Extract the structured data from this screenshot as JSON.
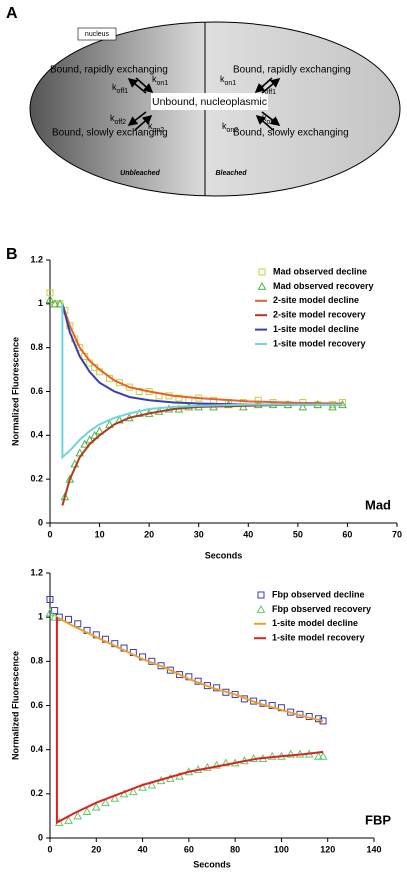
{
  "panel_a": {
    "label": "A",
    "compartment": "nucleus",
    "center": "Unbound, nucleoplasmic",
    "left_top": "Bound, rapidly exchanging",
    "right_top": "Bound, rapidly exchanging",
    "left_bottom": "Bound, slowly exchanging",
    "right_bottom": "Bound, slowly exchanging",
    "left_region": "Unbleached",
    "right_region": "Bleached",
    "rates": [
      {
        "symbol": "k",
        "subscript": "off1"
      },
      {
        "symbol": "k",
        "subscript": "on1"
      },
      {
        "symbol": "k",
        "subscript": "off2"
      },
      {
        "symbol": "k",
        "subscript": "on2"
      },
      {
        "symbol": "k",
        "subscript": "on1"
      },
      {
        "symbol": "k",
        "subscript": "off1"
      },
      {
        "symbol": "k",
        "subscript": "on2"
      },
      {
        "symbol": "k",
        "subscript": "off2"
      }
    ]
  },
  "panel_b_label": "B",
  "chart_data": [
    {
      "type": "line",
      "xlabel": "Seconds",
      "ylabel": "Normalized Fluorescence",
      "annotation": "Mad",
      "legend": "upper right",
      "xlim": [
        0,
        70
      ],
      "xticks": [
        0,
        10,
        20,
        30,
        40,
        50,
        60,
        70
      ],
      "ylim": [
        0,
        1.2
      ],
      "yticks": [
        0,
        0.2,
        0.4,
        0.6,
        0.8,
        1,
        1.2
      ],
      "series": [
        {
          "name": "Mad observed decline",
          "mode": "markers",
          "marker": "square",
          "color": "#c6d33a",
          "x": [
            0,
            1,
            2,
            3,
            4,
            5,
            6,
            7,
            8,
            9,
            10,
            12,
            14,
            16,
            18,
            20,
            22,
            24,
            26,
            28,
            30,
            33,
            36,
            39,
            42,
            45,
            48,
            51,
            54,
            57,
            59
          ],
          "values": [
            1.05,
            1,
            1,
            0.97,
            0.9,
            0.84,
            0.8,
            0.76,
            0.73,
            0.71,
            0.69,
            0.66,
            0.64,
            0.62,
            0.6,
            0.6,
            0.58,
            0.58,
            0.57,
            0.56,
            0.57,
            0.56,
            0.55,
            0.55,
            0.56,
            0.55,
            0.54,
            0.55,
            0.54,
            0.54,
            0.55
          ]
        },
        {
          "name": "Mad observed recovery",
          "mode": "markers",
          "marker": "triangle",
          "color": "#4cb648",
          "x": [
            0,
            1,
            2,
            3,
            4,
            5,
            6,
            7,
            8,
            9,
            10,
            12,
            14,
            16,
            18,
            20,
            22,
            24,
            26,
            28,
            30,
            33,
            36,
            39,
            42,
            45,
            48,
            51,
            54,
            57,
            59
          ],
          "values": [
            1.02,
            1,
            1,
            0.12,
            0.2,
            0.27,
            0.32,
            0.36,
            0.38,
            0.4,
            0.42,
            0.45,
            0.47,
            0.48,
            0.5,
            0.5,
            0.51,
            0.52,
            0.52,
            0.53,
            0.53,
            0.53,
            0.54,
            0.53,
            0.54,
            0.54,
            0.54,
            0.53,
            0.54,
            0.53,
            0.54
          ]
        },
        {
          "name": "2-site model decline",
          "mode": "line",
          "color": "#e8602c",
          "x": [
            2.5,
            4,
            6,
            8,
            10,
            13,
            16,
            20,
            25,
            30,
            40,
            50,
            59
          ],
          "values": [
            1,
            0.9,
            0.8,
            0.74,
            0.7,
            0.65,
            0.62,
            0.6,
            0.58,
            0.57,
            0.555,
            0.548,
            0.545
          ]
        },
        {
          "name": "2-site model recovery",
          "mode": "line",
          "color": "#b03a1a",
          "x": [
            2.5,
            4,
            6,
            8,
            10,
            13,
            16,
            20,
            25,
            30,
            40,
            50,
            59
          ],
          "values": [
            0.08,
            0.2,
            0.3,
            0.36,
            0.4,
            0.45,
            0.48,
            0.5,
            0.52,
            0.53,
            0.535,
            0.54,
            0.54
          ]
        },
        {
          "name": "1-site model decline",
          "mode": "line",
          "color": "#3a3fb0",
          "x": [
            2.5,
            4,
            6,
            8,
            10,
            13,
            16,
            20,
            25,
            30,
            40,
            50,
            59
          ],
          "values": [
            1,
            0.87,
            0.76,
            0.69,
            0.64,
            0.6,
            0.575,
            0.56,
            0.55,
            0.545,
            0.54,
            0.54,
            0.54
          ]
        },
        {
          "name": "1-site model recovery",
          "mode": "line",
          "color": "#6fd4e0",
          "x": [
            2.5,
            2.5,
            4,
            6,
            8,
            10,
            13,
            16,
            20,
            25,
            30,
            40,
            50,
            59
          ],
          "values": [
            1,
            0.3,
            0.33,
            0.38,
            0.42,
            0.45,
            0.48,
            0.5,
            0.52,
            0.53,
            0.535,
            0.54,
            0.54,
            0.54
          ]
        }
      ]
    },
    {
      "type": "line",
      "xlabel": "Seconds",
      "ylabel": "Normalized Fluorescence",
      "annotation": "FBP",
      "legend": "upper right",
      "xlim": [
        0,
        140
      ],
      "xticks": [
        0,
        20,
        40,
        60,
        80,
        100,
        120,
        140
      ],
      "ylim": [
        0,
        1.2
      ],
      "yticks": [
        0,
        0.2,
        0.4,
        0.6,
        0.8,
        1,
        1.2
      ],
      "series": [
        {
          "name": "Fbp observed decline",
          "mode": "markers",
          "marker": "square",
          "color": "#3b3bb0",
          "x": [
            0,
            2,
            4,
            8,
            12,
            16,
            20,
            24,
            28,
            32,
            36,
            40,
            44,
            48,
            52,
            56,
            60,
            64,
            68,
            72,
            76,
            80,
            84,
            88,
            92,
            96,
            100,
            104,
            108,
            112,
            116,
            118
          ],
          "values": [
            1.08,
            1.03,
            1,
            0.99,
            0.97,
            0.94,
            0.92,
            0.9,
            0.88,
            0.86,
            0.84,
            0.82,
            0.8,
            0.78,
            0.76,
            0.74,
            0.73,
            0.71,
            0.69,
            0.68,
            0.66,
            0.65,
            0.63,
            0.62,
            0.61,
            0.6,
            0.59,
            0.57,
            0.56,
            0.55,
            0.54,
            0.53
          ]
        },
        {
          "name": "Fbp observed recovery",
          "mode": "markers",
          "marker": "triangle",
          "color": "#5ecb6a",
          "x": [
            0,
            2,
            4,
            8,
            12,
            16,
            20,
            24,
            28,
            32,
            36,
            40,
            44,
            48,
            52,
            56,
            60,
            64,
            68,
            72,
            76,
            80,
            84,
            88,
            92,
            96,
            100,
            104,
            108,
            112,
            116,
            118
          ],
          "values": [
            1.02,
            1,
            0.07,
            0.08,
            0.1,
            0.12,
            0.14,
            0.16,
            0.18,
            0.2,
            0.21,
            0.23,
            0.24,
            0.26,
            0.27,
            0.28,
            0.3,
            0.31,
            0.32,
            0.33,
            0.34,
            0.34,
            0.35,
            0.36,
            0.36,
            0.37,
            0.37,
            0.38,
            0.38,
            0.38,
            0.37,
            0.37
          ]
        },
        {
          "name": "1-site model decline",
          "mode": "line",
          "color": "#f0a020",
          "x": [
            3,
            10,
            20,
            30,
            40,
            50,
            60,
            70,
            80,
            90,
            100,
            110,
            118
          ],
          "values": [
            1,
            0.96,
            0.91,
            0.86,
            0.81,
            0.77,
            0.72,
            0.68,
            0.65,
            0.61,
            0.58,
            0.55,
            0.53
          ]
        },
        {
          "name": "1-site model recovery",
          "mode": "line",
          "color": "#e02020",
          "x": [
            3,
            3,
            10,
            20,
            30,
            40,
            50,
            60,
            70,
            80,
            90,
            100,
            110,
            118
          ],
          "values": [
            1,
            0.07,
            0.11,
            0.16,
            0.2,
            0.24,
            0.27,
            0.3,
            0.32,
            0.34,
            0.36,
            0.37,
            0.38,
            0.39
          ]
        }
      ]
    }
  ]
}
